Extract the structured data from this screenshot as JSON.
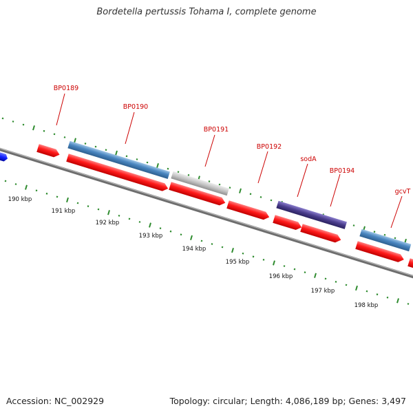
{
  "map": {
    "title": "Bordetella pertussis Tohama I, complete genome",
    "accession": "Accession: NC_002929",
    "stats": "Topology: circular; Length: 4,086,189 bp; Genes: 3,497"
  },
  "colors": {
    "backbone": "#7a7a7a",
    "cds_red": "#ff1a1a",
    "gene_steelblue": "#4a86c0",
    "gene_grey": "#c4c4c4",
    "gene_purple": "#4a3d8c",
    "gene_blue": "#1020ff",
    "ticks": "#2e8b2e",
    "label_red": "#cc0000"
  },
  "scale_labels": [
    "190 kbp",
    "191 kbp",
    "192 kbp",
    "193 kbp",
    "194 kbp",
    "195 kbp",
    "196 kbp",
    "197 kbp",
    "198 kbp"
  ],
  "gene_labels": [
    {
      "text": "BP0189"
    },
    {
      "text": "BP0190"
    },
    {
      "text": "BP0191"
    },
    {
      "text": "BP0192"
    },
    {
      "text": "sodA"
    },
    {
      "text": "BP0194"
    },
    {
      "text": "gcvT"
    }
  ]
}
